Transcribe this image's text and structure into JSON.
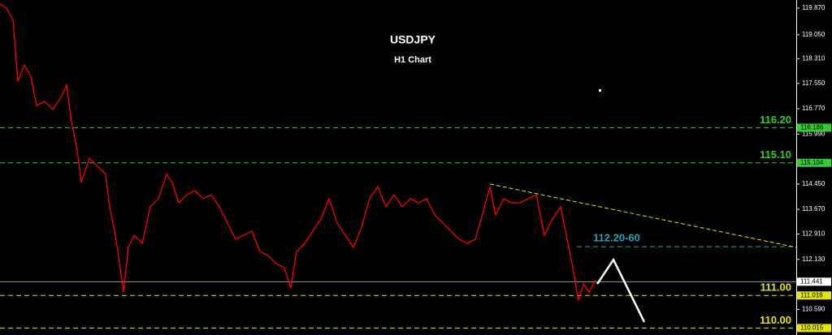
{
  "chart_data": {
    "type": "line",
    "title": "USDJPY",
    "subtitle": "H1 Chart",
    "x": [
      0,
      4,
      8,
      11,
      15,
      19,
      22.5,
      27.5,
      32.5,
      37.5,
      41,
      44,
      47.5,
      50,
      55,
      60,
      65,
      67.5,
      71,
      74,
      76,
      79,
      82.5,
      87.5,
      92.5,
      97.5,
      102.5,
      106,
      110,
      115,
      120,
      125,
      130,
      135,
      140,
      145,
      150,
      155,
      160,
      165,
      170,
      175,
      179,
      182.5,
      187.5,
      192.5,
      197.5,
      202.5,
      207.5,
      212.5,
      217.5,
      222.5,
      227.5,
      232.5,
      237.5,
      242.5,
      247.5,
      252.5,
      257.5,
      262.5,
      267.5,
      272.5,
      277.5,
      282.5,
      287.5,
      292.5,
      297.5,
      301.5,
      305,
      310,
      315,
      320,
      325,
      330,
      335,
      340,
      345,
      349,
      352.5,
      356,
      359,
      362.5,
      366.5
    ],
    "series": [
      {
        "color": "#ff0000",
        "values": [
          120.0,
          119.87,
          119.5,
          117.62,
          118.12,
          117.75,
          116.87,
          117.0,
          116.75,
          117.12,
          117.5,
          116.37,
          115.5,
          114.5,
          115.25,
          115.0,
          114.75,
          113.75,
          112.87,
          111.87,
          111.12,
          112.5,
          112.87,
          112.62,
          113.75,
          114.0,
          114.75,
          114.5,
          113.87,
          114.12,
          114.25,
          114.0,
          114.12,
          113.75,
          113.25,
          112.75,
          112.87,
          113.0,
          112.37,
          112.25,
          112.0,
          111.87,
          111.25,
          112.37,
          112.62,
          113.0,
          113.37,
          114.0,
          113.25,
          112.87,
          112.5,
          113.12,
          114.0,
          114.37,
          113.75,
          114.12,
          113.75,
          114.0,
          113.87,
          114.0,
          113.5,
          113.25,
          113.0,
          112.75,
          112.62,
          112.75,
          113.62,
          114.37,
          113.5,
          114.0,
          113.87,
          113.87,
          114.0,
          114.12,
          112.87,
          113.37,
          113.75,
          112.75,
          111.87,
          110.87,
          111.37,
          111.12,
          111.5
        ]
      }
    ],
    "xlim": [
      0,
      490
    ],
    "ylim": [
      109.8,
      120.12
    ],
    "yticks": [
      {
        "value": 119.87,
        "label": "119.870"
      },
      {
        "value": 119.05,
        "label": "119.050"
      },
      {
        "value": 118.31,
        "label": "118.310"
      },
      {
        "value": 117.55,
        "label": "117.550"
      },
      {
        "value": 116.77,
        "label": "116.770"
      },
      {
        "value": 115.99,
        "label": "115.990"
      },
      {
        "value": 114.45,
        "label": "114.450"
      },
      {
        "value": 113.67,
        "label": "113.670"
      },
      {
        "value": 112.91,
        "label": "112.910"
      },
      {
        "value": 112.13,
        "label": "112.130"
      },
      {
        "value": 110.59,
        "label": "110.590"
      }
    ],
    "levels": [
      {
        "value": 116.186,
        "label": "116.20",
        "color": "#33cc33"
      },
      {
        "value": 115.104,
        "label": "115.10",
        "color": "#33cc33"
      },
      {
        "value": 111.018,
        "label": "111.00",
        "color": "#e6e600"
      },
      {
        "value": 110.015,
        "label": "110.00",
        "color": "#e6e600"
      }
    ],
    "target": {
      "value": 112.52,
      "label": "112.20-60",
      "x_start": 355,
      "color": "#1fa3b3"
    },
    "current_price": {
      "value": 111.441,
      "color": "#9a9a9a"
    },
    "trendline": {
      "x": [
        301.5,
        490
      ],
      "values": [
        114.45,
        112.5
      ],
      "color": "#e6e600"
    },
    "projection": {
      "x": [
        367.5,
        377.5,
        396.5
      ],
      "values": [
        111.37,
        112.12,
        110.2
      ],
      "color": "#ffffff"
    }
  }
}
